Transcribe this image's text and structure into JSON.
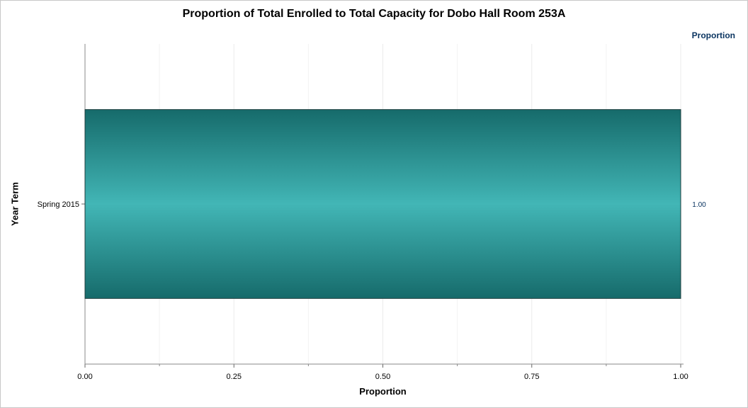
{
  "chart_data": {
    "type": "bar",
    "orientation": "horizontal",
    "title": "Proportion of Total Enrolled to Total Capacity for Dobo Hall Room 253A",
    "xlabel": "Proportion",
    "ylabel": "Year Term",
    "categories": [
      "Spring 2015"
    ],
    "values": [
      1.0
    ],
    "value_labels": [
      "1.00"
    ],
    "value_column_header": "Proportion",
    "xlim": [
      0,
      1
    ],
    "xticks": [
      0,
      0.25,
      0.5,
      0.75,
      1.0
    ],
    "xtick_labels": [
      "0.00",
      "0.25",
      "0.50",
      "0.75",
      "1.00"
    ],
    "grid": "vertical",
    "colors": {
      "bar_edge": "#166b6b",
      "bar_center": "#42b6b6",
      "bar_outline": "#1e3c3c",
      "value_text": "#0b3561"
    }
  }
}
